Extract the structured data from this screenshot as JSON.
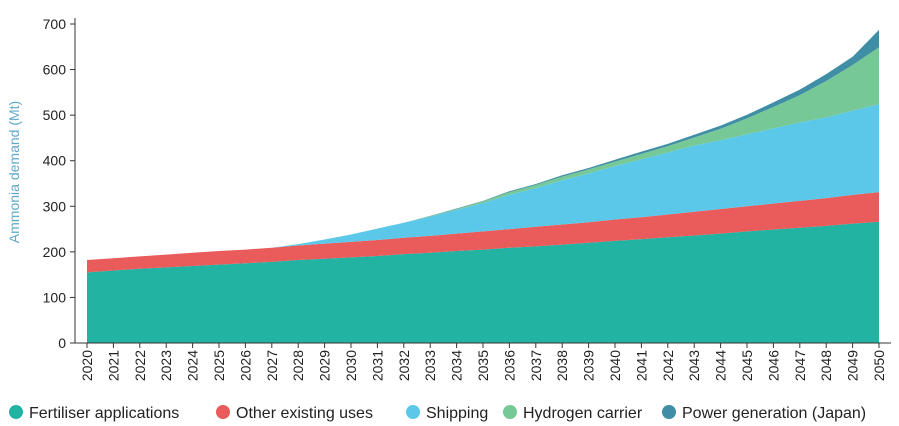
{
  "chart_data": {
    "type": "area",
    "stacked": true,
    "title": "",
    "xlabel": "",
    "ylabel": "Ammonia demand (Mt)",
    "ylim": [
      0,
      700
    ],
    "yticks": [
      0,
      100,
      200,
      300,
      400,
      500,
      600,
      700
    ],
    "grid": false,
    "legend_position": "bottom",
    "categories": [
      "2020",
      "2021",
      "2022",
      "2023",
      "2024",
      "2025",
      "2026",
      "2027",
      "2028",
      "2029",
      "2030",
      "2031",
      "2032",
      "2033",
      "2034",
      "2035",
      "2036",
      "2037",
      "2038",
      "2039",
      "2040",
      "2041",
      "2042",
      "2043",
      "2044",
      "2045",
      "2046",
      "2047",
      "2048",
      "2049",
      "2050"
    ],
    "series": [
      {
        "name": "Fertiliser applications",
        "color": "#22b3a3",
        "values": [
          155,
          159,
          163,
          166,
          169,
          172,
          175,
          178,
          182,
          185,
          188,
          191,
          195,
          198,
          202,
          205,
          209,
          212,
          216,
          220,
          224,
          228,
          232,
          236,
          240,
          245,
          249,
          253,
          257,
          262,
          266
        ]
      },
      {
        "name": "Other existing uses",
        "color": "#ea5b5b",
        "values": [
          27,
          27,
          27,
          28,
          29,
          30,
          30,
          31,
          32,
          33,
          34,
          35,
          36,
          37,
          38,
          40,
          41,
          43,
          44,
          45,
          47,
          48,
          50,
          52,
          54,
          55,
          57,
          59,
          61,
          63,
          65
        ]
      },
      {
        "name": "Shipping",
        "color": "#5bc8ea",
        "values": [
          0,
          0,
          0,
          0,
          0,
          0,
          0,
          0,
          3,
          9,
          16,
          25,
          33,
          42,
          52,
          62,
          75,
          85,
          97,
          107,
          117,
          127,
          136,
          145,
          151,
          158,
          165,
          172,
          177,
          185,
          193
        ]
      },
      {
        "name": "Hydrogen carrier",
        "color": "#76c996",
        "values": [
          0,
          0,
          0,
          0,
          0,
          0,
          0,
          0,
          0,
          0,
          0,
          0,
          0,
          1,
          2,
          4,
          6,
          7,
          8,
          9,
          10,
          12,
          14,
          18,
          25,
          35,
          47,
          60,
          80,
          100,
          125
        ]
      },
      {
        "name": "Power generation (Japan)",
        "color": "#3f8ea6",
        "values": [
          0,
          0,
          0,
          0,
          0,
          0,
          0,
          0,
          0,
          0,
          0,
          0,
          0,
          1,
          1,
          1,
          2,
          2,
          3,
          3,
          4,
          5,
          5,
          6,
          7,
          8,
          10,
          12,
          15,
          18,
          38
        ]
      }
    ]
  }
}
